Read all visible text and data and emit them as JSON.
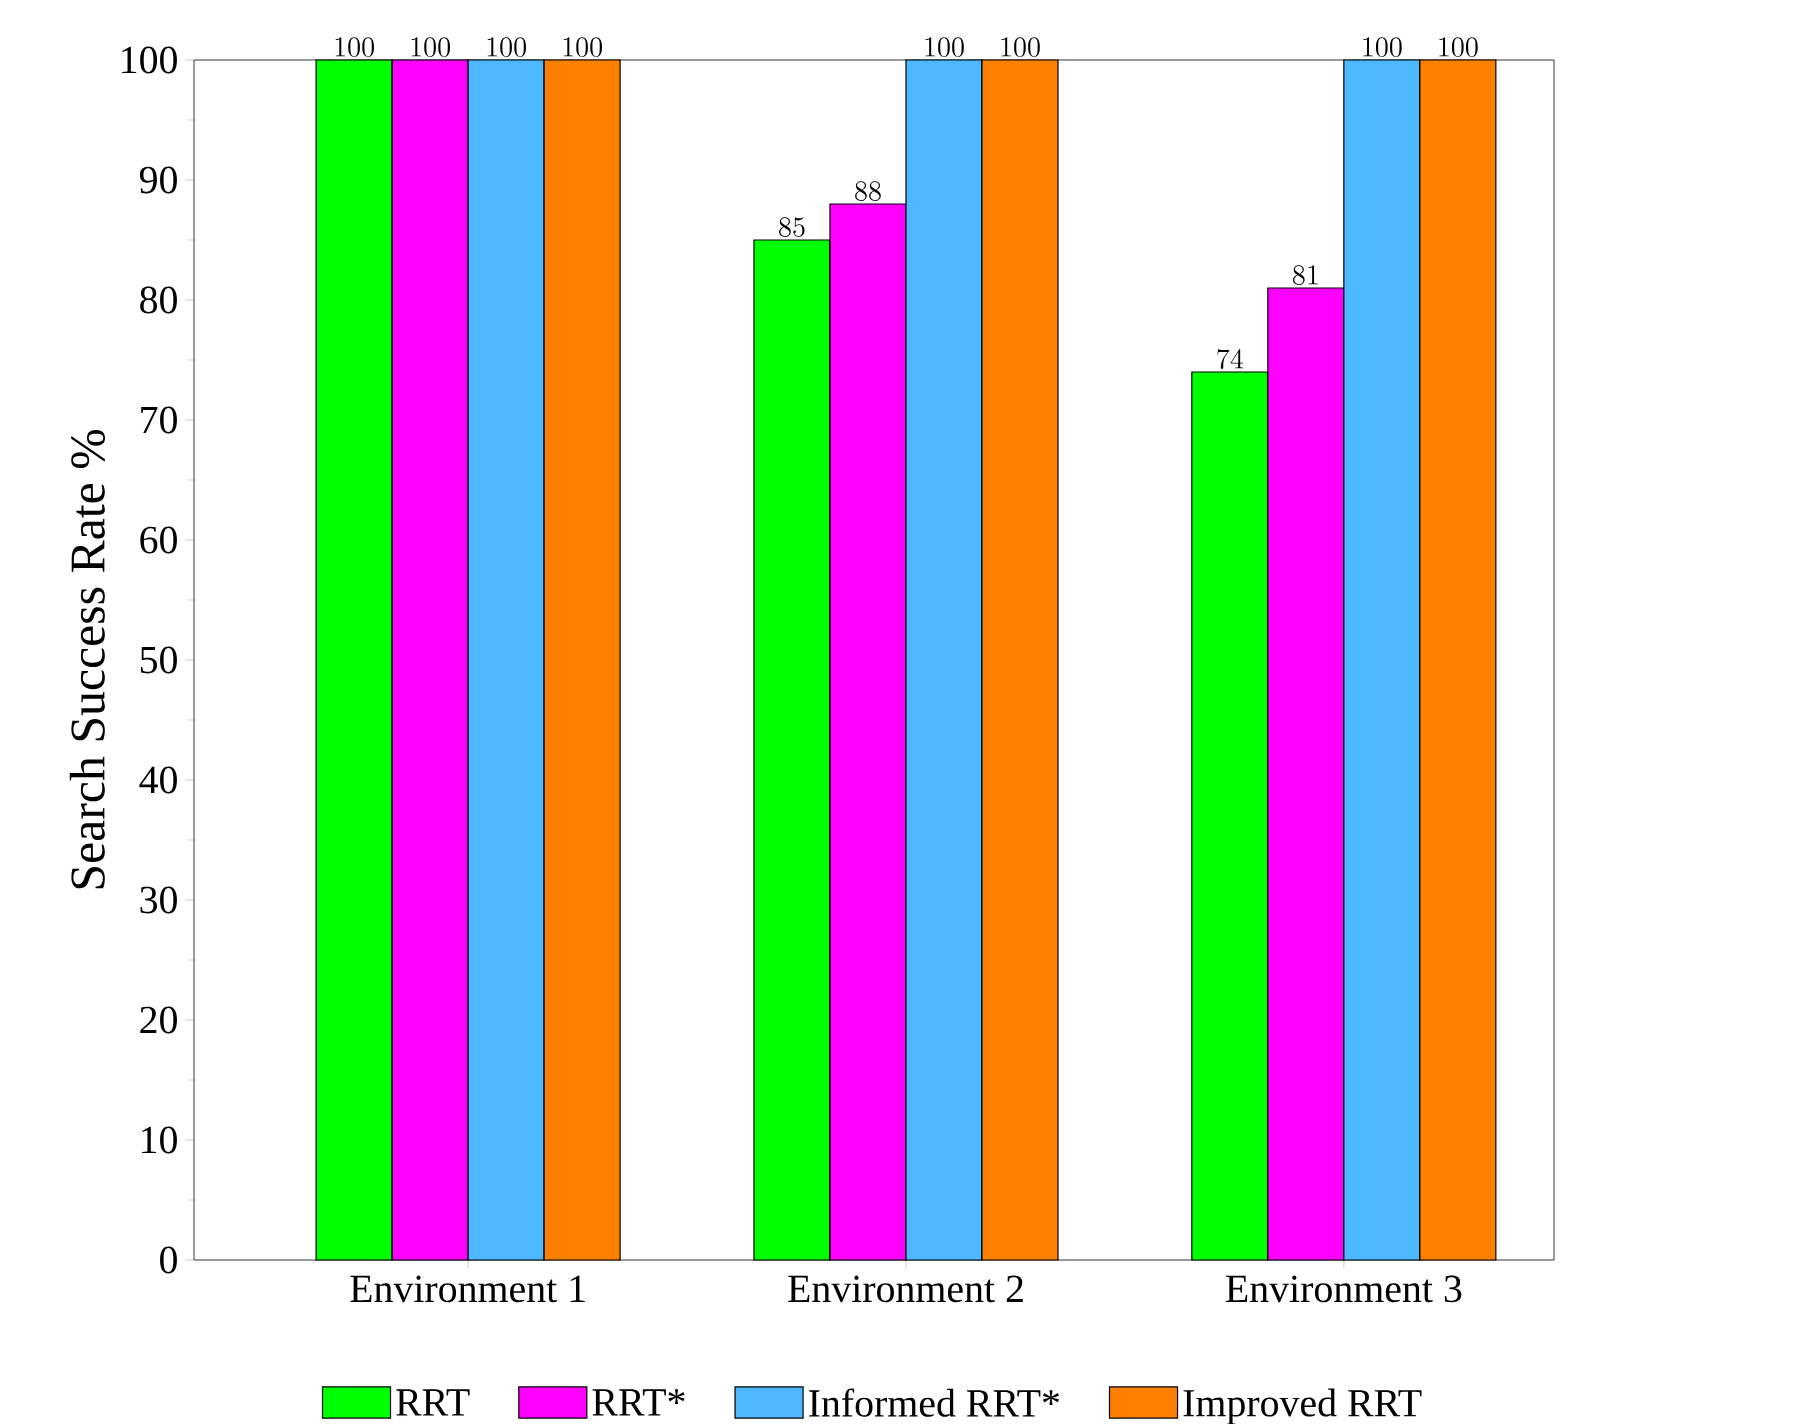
{
  "chart_data": {
    "type": "bar",
    "ylabel": "Search  Success  Rate %",
    "categories": [
      "Environment 1",
      "Environment 2",
      "Environment 3"
    ],
    "series": [
      {
        "name": "RRT",
        "color": "#00ff00",
        "values": [
          100,
          85,
          74
        ]
      },
      {
        "name": "RRT*",
        "color": "#ff00ff",
        "values": [
          100,
          88,
          81
        ]
      },
      {
        "name": "Informed RRT*",
        "color": "#4db8ff",
        "values": [
          100,
          100,
          100
        ]
      },
      {
        "name": "Improved RRT",
        "color": "#ff8000",
        "values": [
          100,
          100,
          100
        ]
      }
    ],
    "ylim": [
      0,
      100
    ],
    "yticks": [
      0,
      10,
      20,
      30,
      40,
      50,
      60,
      70,
      80,
      90,
      100
    ],
    "data_labels": true,
    "legend": "bottom",
    "grid": false
  }
}
